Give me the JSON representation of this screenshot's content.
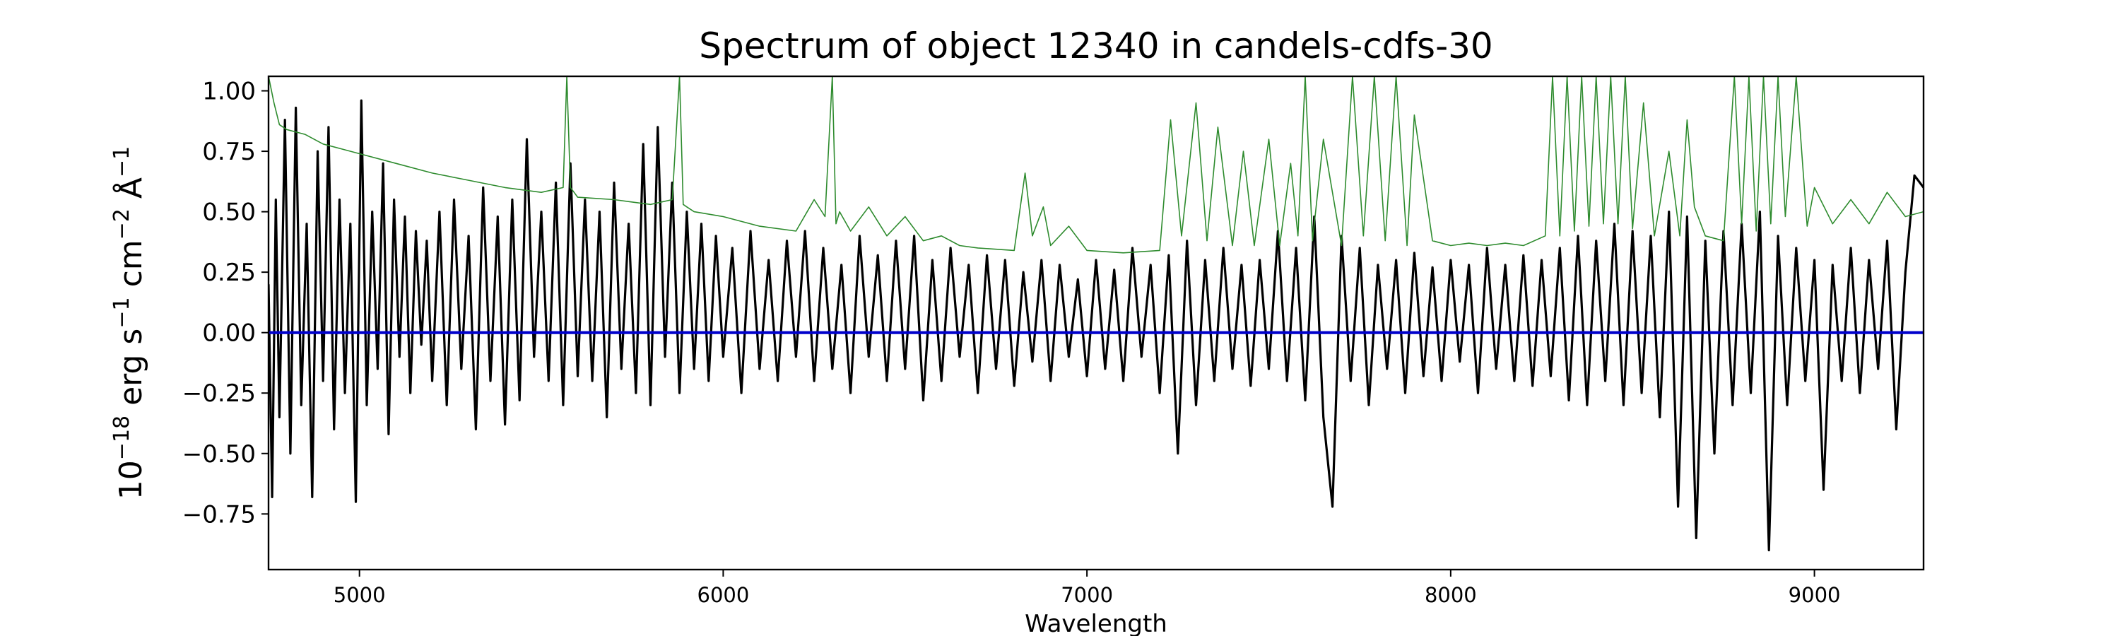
{
  "chart_data": {
    "type": "line",
    "title": "Spectrum of object 12340 in candels-cdfs-30",
    "xlabel": "Wavelength",
    "ylabel": {
      "base": "10",
      "exp1": "−18",
      "mid1": " erg s",
      "exp2": "−1",
      "mid2": " cm",
      "exp3": "−2",
      "mid3": " Å",
      "exp4": "−1"
    },
    "xlim": [
      4750,
      9300
    ],
    "ylim": [
      -0.98,
      1.06
    ],
    "x_ticks": [
      "5000",
      "6000",
      "7000",
      "8000",
      "9000"
    ],
    "y_ticks": [
      "1.00",
      "0.75",
      "0.50",
      "0.25",
      "0.00",
      "−0.25",
      "−0.50",
      "−0.75"
    ],
    "grid": false,
    "legend": "none",
    "series": [
      {
        "role": "flux",
        "color": "#000000",
        "x": [
          4750,
          4760,
          4770,
          4780,
          4795,
          4810,
          4825,
          4840,
          4855,
          4870,
          4885,
          4900,
          4915,
          4930,
          4945,
          4960,
          4975,
          4990,
          5005,
          5020,
          5035,
          5050,
          5065,
          5080,
          5095,
          5110,
          5125,
          5140,
          5155,
          5170,
          5185,
          5200,
          5220,
          5240,
          5260,
          5280,
          5300,
          5320,
          5340,
          5360,
          5380,
          5400,
          5420,
          5440,
          5460,
          5480,
          5500,
          5520,
          5540,
          5560,
          5580,
          5600,
          5620,
          5640,
          5660,
          5680,
          5700,
          5720,
          5740,
          5760,
          5780,
          5800,
          5820,
          5840,
          5860,
          5880,
          5900,
          5920,
          5940,
          5960,
          5980,
          6000,
          6025,
          6050,
          6075,
          6100,
          6125,
          6150,
          6175,
          6200,
          6225,
          6250,
          6275,
          6300,
          6325,
          6350,
          6375,
          6400,
          6425,
          6450,
          6475,
          6500,
          6525,
          6550,
          6575,
          6600,
          6625,
          6650,
          6675,
          6700,
          6725,
          6750,
          6775,
          6800,
          6825,
          6850,
          6875,
          6900,
          6925,
          6950,
          6975,
          7000,
          7025,
          7050,
          7075,
          7100,
          7125,
          7150,
          7175,
          7200,
          7225,
          7250,
          7275,
          7300,
          7325,
          7350,
          7375,
          7400,
          7425,
          7450,
          7475,
          7500,
          7525,
          7550,
          7575,
          7600,
          7625,
          7650,
          7675,
          7700,
          7725,
          7750,
          7775,
          7800,
          7825,
          7850,
          7875,
          7900,
          7925,
          7950,
          7975,
          8000,
          8025,
          8050,
          8075,
          8100,
          8125,
          8150,
          8175,
          8200,
          8225,
          8250,
          8275,
          8300,
          8325,
          8350,
          8375,
          8400,
          8425,
          8450,
          8475,
          8500,
          8525,
          8550,
          8575,
          8600,
          8625,
          8650,
          8675,
          8700,
          8725,
          8750,
          8775,
          8800,
          8825,
          8850,
          8875,
          8900,
          8925,
          8950,
          8975,
          9000,
          9025,
          9050,
          9075,
          9100,
          9125,
          9150,
          9175,
          9200,
          9225,
          9250,
          9275,
          9300
        ],
        "y": [
          0.2,
          -0.68,
          0.55,
          -0.35,
          0.88,
          -0.5,
          0.93,
          -0.3,
          0.45,
          -0.68,
          0.75,
          -0.2,
          0.85,
          -0.4,
          0.55,
          -0.25,
          0.45,
          -0.7,
          0.96,
          -0.3,
          0.5,
          -0.15,
          0.7,
          -0.42,
          0.55,
          -0.1,
          0.48,
          -0.25,
          0.42,
          -0.05,
          0.38,
          -0.2,
          0.5,
          -0.3,
          0.55,
          -0.15,
          0.4,
          -0.4,
          0.6,
          -0.2,
          0.48,
          -0.38,
          0.55,
          -0.28,
          0.8,
          -0.1,
          0.5,
          -0.2,
          0.62,
          -0.3,
          0.7,
          -0.18,
          0.55,
          -0.2,
          0.5,
          -0.35,
          0.62,
          -0.15,
          0.45,
          -0.25,
          0.78,
          -0.3,
          0.85,
          -0.1,
          0.62,
          -0.25,
          0.5,
          -0.15,
          0.45,
          -0.2,
          0.4,
          -0.1,
          0.35,
          -0.25,
          0.42,
          -0.15,
          0.3,
          -0.2,
          0.38,
          -0.1,
          0.42,
          -0.2,
          0.35,
          -0.15,
          0.28,
          -0.25,
          0.4,
          -0.1,
          0.32,
          -0.2,
          0.38,
          -0.15,
          0.4,
          -0.28,
          0.3,
          -0.2,
          0.35,
          -0.1,
          0.28,
          -0.25,
          0.32,
          -0.15,
          0.3,
          -0.22,
          0.25,
          -0.12,
          0.3,
          -0.2,
          0.28,
          -0.1,
          0.22,
          -0.18,
          0.3,
          -0.15,
          0.26,
          -0.2,
          0.35,
          -0.1,
          0.28,
          -0.25,
          0.32,
          -0.5,
          0.38,
          -0.3,
          0.3,
          -0.2,
          0.35,
          -0.15,
          0.28,
          -0.22,
          0.3,
          -0.15,
          0.42,
          -0.2,
          0.35,
          -0.28,
          0.48,
          -0.35,
          -0.72,
          0.4,
          -0.2,
          0.35,
          -0.3,
          0.28,
          -0.15,
          0.3,
          -0.25,
          0.33,
          -0.18,
          0.27,
          -0.2,
          0.3,
          -0.12,
          0.28,
          -0.25,
          0.35,
          -0.15,
          0.28,
          -0.2,
          0.32,
          -0.22,
          0.3,
          -0.18,
          0.35,
          -0.28,
          0.4,
          -0.3,
          0.38,
          -0.2,
          0.45,
          -0.3,
          0.42,
          -0.25,
          0.4,
          -0.35,
          0.5,
          -0.72,
          0.48,
          -0.85,
          0.38,
          -0.5,
          0.42,
          -0.3,
          0.45,
          -0.25,
          0.5,
          -0.9,
          0.4,
          -0.3,
          0.35,
          -0.2,
          0.3,
          -0.65,
          0.28,
          -0.2,
          0.35,
          -0.25,
          0.3,
          -0.15,
          0.38,
          -0.4,
          0.25,
          0.65,
          0.6
        ]
      },
      {
        "role": "contamination / noise",
        "color": "#2e8b2e",
        "x": [
          4750,
          4765,
          4780,
          4800,
          4850,
          4900,
          4950,
          5000,
          5100,
          5200,
          5300,
          5400,
          5500,
          5560,
          5570,
          5580,
          5590,
          5600,
          5700,
          5800,
          5860,
          5880,
          5890,
          5900,
          5920,
          6000,
          6100,
          6200,
          6250,
          6280,
          6300,
          6310,
          6320,
          6350,
          6400,
          6450,
          6500,
          6550,
          6600,
          6650,
          6700,
          6800,
          6830,
          6850,
          6880,
          6900,
          6950,
          7000,
          7100,
          7200,
          7230,
          7260,
          7300,
          7330,
          7360,
          7400,
          7430,
          7460,
          7500,
          7530,
          7560,
          7580,
          7600,
          7620,
          7650,
          7700,
          7730,
          7760,
          7790,
          7820,
          7850,
          7880,
          7900,
          7950,
          8000,
          8050,
          8100,
          8150,
          8200,
          8260,
          8280,
          8300,
          8320,
          8340,
          8360,
          8380,
          8400,
          8420,
          8440,
          8460,
          8480,
          8500,
          8530,
          8560,
          8600,
          8630,
          8650,
          8670,
          8700,
          8750,
          8780,
          8800,
          8820,
          8840,
          8860,
          8880,
          8900,
          8920,
          8950,
          8980,
          9000,
          9050,
          9100,
          9150,
          9200,
          9250,
          9300
        ],
        "y": [
          1.06,
          0.95,
          0.86,
          0.84,
          0.82,
          0.78,
          0.76,
          0.74,
          0.7,
          0.66,
          0.63,
          0.6,
          0.58,
          0.6,
          1.06,
          0.6,
          0.58,
          0.56,
          0.55,
          0.53,
          0.55,
          1.06,
          0.53,
          0.52,
          0.5,
          0.48,
          0.44,
          0.42,
          0.55,
          0.48,
          1.06,
          0.45,
          0.5,
          0.42,
          0.52,
          0.4,
          0.48,
          0.38,
          0.4,
          0.36,
          0.35,
          0.34,
          0.66,
          0.4,
          0.52,
          0.36,
          0.44,
          0.34,
          0.33,
          0.34,
          0.88,
          0.4,
          0.95,
          0.38,
          0.85,
          0.36,
          0.75,
          0.36,
          0.8,
          0.36,
          0.7,
          0.4,
          1.06,
          0.38,
          0.8,
          0.36,
          1.06,
          0.4,
          1.06,
          0.38,
          1.06,
          0.36,
          0.9,
          0.38,
          0.36,
          0.37,
          0.36,
          0.37,
          0.36,
          0.4,
          1.06,
          0.4,
          1.06,
          0.42,
          1.06,
          0.44,
          1.06,
          0.45,
          1.06,
          0.45,
          1.06,
          0.43,
          0.95,
          0.4,
          0.75,
          0.4,
          0.88,
          0.52,
          0.4,
          0.38,
          1.06,
          0.45,
          1.06,
          0.42,
          1.06,
          0.45,
          1.06,
          0.48,
          1.06,
          0.44,
          0.6,
          0.45,
          0.55,
          0.45,
          0.58,
          0.48,
          0.5
        ]
      },
      {
        "role": "zero model",
        "color": "#0000cc",
        "x": [
          4750,
          9300
        ],
        "y": [
          0.0,
          0.0
        ]
      }
    ]
  }
}
